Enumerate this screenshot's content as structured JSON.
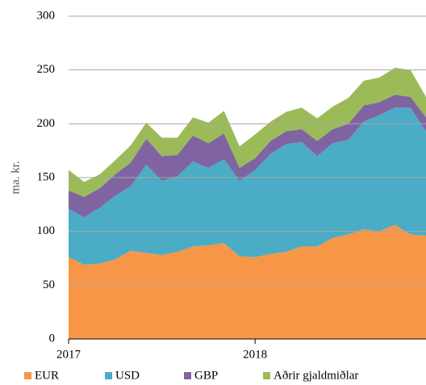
{
  "chart_data": {
    "type": "stacked_area",
    "y_label": "ma. kr.",
    "categories": [
      "2017",
      null,
      null,
      null,
      null,
      null,
      null,
      null,
      null,
      null,
      null,
      null,
      "2018",
      null,
      null,
      null,
      null,
      null,
      null,
      null,
      null,
      null,
      null,
      null
    ],
    "series": [
      {
        "name": "EUR",
        "color": "#f79646",
        "values": [
          76,
          69,
          70,
          74,
          82,
          80,
          78,
          81,
          86,
          87,
          89,
          77,
          76,
          79,
          81,
          86,
          86,
          94,
          97,
          102,
          100,
          106,
          97,
          96
        ]
      },
      {
        "name": "USD",
        "color": "#4bacc6",
        "values": [
          45,
          44,
          52,
          59,
          60,
          82,
          69,
          70,
          79,
          72,
          78,
          70,
          81,
          93,
          100,
          97,
          84,
          88,
          88,
          100,
          108,
          109,
          118,
          97
        ]
      },
      {
        "name": "GBP",
        "color": "#8064a2",
        "values": [
          17,
          19,
          18,
          20,
          22,
          24,
          23,
          20,
          24,
          23,
          24,
          12,
          11,
          12,
          12,
          12,
          14,
          13,
          15,
          15,
          12,
          12,
          10,
          13
        ]
      },
      {
        "name": "Aðrir gjaldmiðlar",
        "color": "#9bbb59",
        "values": [
          19,
          14,
          13,
          13,
          16,
          15,
          17,
          16,
          17,
          19,
          21,
          20,
          22,
          18,
          18,
          20,
          21,
          21,
          24,
          23,
          23,
          25,
          25,
          19
        ]
      }
    ],
    "ylim": [
      0,
      300
    ],
    "yticks": [
      0,
      50,
      100,
      150,
      200,
      250,
      300
    ],
    "grid": true,
    "legend": "bottom"
  }
}
